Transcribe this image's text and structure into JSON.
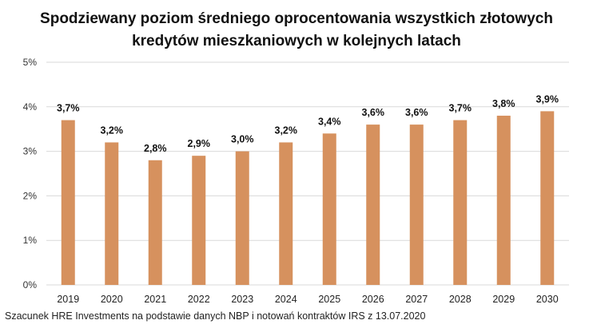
{
  "chart_data": {
    "type": "bar",
    "title_lines": [
      "Spodziewany poziom średniego oprocentowania wszystkich złotowych",
      "kredytów mieszkaniowych w kolejnych latach"
    ],
    "categories": [
      "2019",
      "2020",
      "2021",
      "2022",
      "2023",
      "2024",
      "2025",
      "2026",
      "2027",
      "2028",
      "2029",
      "2030"
    ],
    "values": [
      3.7,
      3.2,
      2.8,
      2.9,
      3.0,
      3.2,
      3.4,
      3.6,
      3.6,
      3.7,
      3.8,
      3.9
    ],
    "labels": [
      "3,7%",
      "3,2%",
      "2,8%",
      "2,9%",
      "3,0%",
      "3,2%",
      "3,4%",
      "3,6%",
      "3,6%",
      "3,7%",
      "3,8%",
      "3,9%"
    ],
    "ylim": [
      0,
      5
    ],
    "yticks": [
      0,
      1,
      2,
      3,
      4,
      5
    ],
    "ytick_labels": [
      "0%",
      "1%",
      "2%",
      "3%",
      "4%",
      "5%"
    ],
    "grid": true,
    "xlabel": "",
    "ylabel": "",
    "bar_color": "#D6915E",
    "grid_color": "#D9D9D9"
  },
  "source": "Szacunek HRE Investments na podstawie danych NBP i notowań kontraktów IRS z 13.07.2020"
}
